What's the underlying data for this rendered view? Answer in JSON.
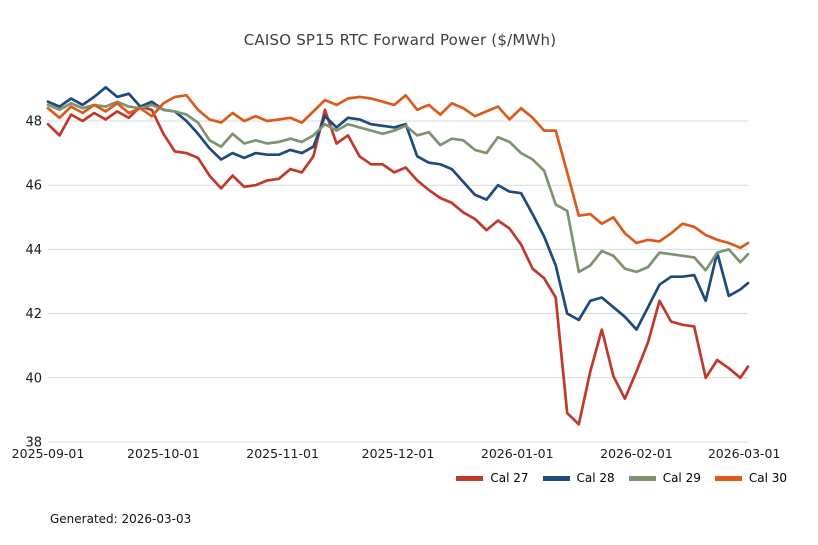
{
  "title": "CAISO SP15 RTC Forward Power ($/MWh)",
  "footer": {
    "generated_label": "Generated: 2026-03-03"
  },
  "chart_data": {
    "type": "line",
    "title": "CAISO SP15 RTC Forward Power ($/MWh)",
    "xlabel": "",
    "ylabel": "",
    "grid": "horizontal",
    "grid_color": "#d9d9d9",
    "tick_label_color": "#1a1a1a",
    "legend_position": "bottom-right",
    "y_axis": {
      "ticks": [
        38,
        40,
        42,
        44,
        46,
        48
      ],
      "range": [
        38,
        49.3
      ]
    },
    "x_axis": {
      "tick_labels": [
        "2025-09-01",
        "2025-10-01",
        "2025-11-01",
        "2025-12-01",
        "2026-01-01",
        "2026-02-01",
        "2026-03-01"
      ],
      "tick_days": [
        0,
        30,
        61,
        91,
        122,
        153,
        181
      ],
      "span_days": 182
    },
    "x_days": [
      0,
      3,
      6,
      9,
      12,
      15,
      18,
      21,
      24,
      27,
      30,
      33,
      36,
      39,
      42,
      45,
      48,
      51,
      54,
      57,
      60,
      63,
      66,
      69,
      72,
      75,
      78,
      81,
      84,
      87,
      90,
      93,
      96,
      99,
      102,
      105,
      108,
      111,
      114,
      117,
      120,
      123,
      126,
      129,
      132,
      135,
      138,
      141,
      144,
      147,
      150,
      153,
      156,
      159,
      162,
      165,
      168,
      171,
      174,
      177,
      180,
      182
    ],
    "series": [
      {
        "name": "Cal 27",
        "color": "#c0392b",
        "values": [
          47.9,
          47.55,
          48.2,
          48.0,
          48.25,
          48.05,
          48.3,
          48.1,
          48.45,
          48.35,
          47.6,
          47.05,
          47.0,
          46.85,
          46.3,
          45.9,
          46.3,
          45.95,
          46.0,
          46.15,
          46.2,
          46.5,
          46.4,
          46.9,
          48.35,
          47.3,
          47.55,
          46.9,
          46.65,
          46.65,
          46.4,
          46.55,
          46.15,
          45.85,
          45.6,
          45.45,
          45.15,
          44.95,
          44.6,
          44.9,
          44.65,
          44.15,
          43.4,
          43.1,
          42.5,
          38.9,
          38.55,
          40.2,
          41.5,
          40.05,
          39.35,
          40.2,
          41.1,
          42.4,
          41.75,
          41.65,
          41.6,
          40.0,
          40.55,
          40.3,
          40.0,
          40.35
        ]
      },
      {
        "name": "Cal 28",
        "color": "#1c4b7c",
        "values": [
          48.6,
          48.45,
          48.7,
          48.5,
          48.75,
          49.05,
          48.75,
          48.85,
          48.45,
          48.6,
          48.35,
          48.3,
          48.0,
          47.6,
          47.15,
          46.8,
          47.0,
          46.85,
          47.0,
          46.95,
          46.95,
          47.1,
          47.0,
          47.2,
          48.15,
          47.8,
          48.1,
          48.05,
          47.9,
          47.85,
          47.8,
          47.9,
          46.9,
          46.7,
          46.65,
          46.5,
          46.1,
          45.7,
          45.55,
          46.0,
          45.8,
          45.75,
          45.1,
          44.4,
          43.5,
          42.0,
          41.8,
          42.4,
          42.5,
          42.2,
          41.9,
          41.5,
          42.2,
          42.9,
          43.15,
          43.15,
          43.2,
          42.4,
          43.9,
          42.55,
          42.75,
          42.95
        ]
      },
      {
        "name": "Cal 29",
        "color": "#7d9471",
        "values": [
          48.5,
          48.35,
          48.55,
          48.4,
          48.5,
          48.45,
          48.6,
          48.45,
          48.4,
          48.5,
          48.35,
          48.3,
          48.2,
          47.95,
          47.4,
          47.2,
          47.6,
          47.3,
          47.4,
          47.3,
          47.35,
          47.45,
          47.35,
          47.55,
          47.9,
          47.7,
          47.9,
          47.8,
          47.7,
          47.6,
          47.7,
          47.85,
          47.55,
          47.65,
          47.25,
          47.45,
          47.4,
          47.1,
          47.0,
          47.5,
          47.35,
          47.0,
          46.8,
          46.45,
          45.4,
          45.2,
          43.3,
          43.5,
          43.95,
          43.8,
          43.4,
          43.3,
          43.45,
          43.9,
          43.85,
          43.8,
          43.75,
          43.35,
          43.9,
          44.0,
          43.6,
          43.85
        ]
      },
      {
        "name": "Cal 30",
        "color": "#db5a1c",
        "values": [
          48.4,
          48.1,
          48.45,
          48.25,
          48.5,
          48.3,
          48.55,
          48.25,
          48.4,
          48.15,
          48.55,
          48.75,
          48.8,
          48.35,
          48.05,
          47.95,
          48.25,
          48.0,
          48.15,
          48.0,
          48.05,
          48.1,
          47.95,
          48.3,
          48.65,
          48.5,
          48.7,
          48.75,
          48.7,
          48.6,
          48.5,
          48.8,
          48.35,
          48.5,
          48.2,
          48.55,
          48.4,
          48.15,
          48.3,
          48.45,
          48.05,
          48.4,
          48.1,
          47.7,
          47.7,
          46.4,
          45.05,
          45.1,
          44.8,
          45.0,
          44.5,
          44.2,
          44.3,
          44.25,
          44.5,
          44.8,
          44.7,
          44.45,
          44.3,
          44.2,
          44.05,
          44.2
        ]
      }
    ],
    "legend_entries": [
      "Cal 27",
      "Cal 28",
      "Cal 29",
      "Cal 30"
    ]
  }
}
